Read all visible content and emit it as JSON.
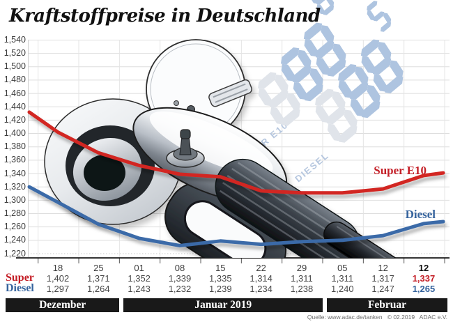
{
  "title": "Kraftstoffpreise in Deutschland",
  "source": "Quelle: www.adac.de/tanken   © 02.2019   ADAC e.V.",
  "colors": {
    "super_line": "#d22620",
    "super_text": "#c41e26",
    "diesel_line": "#3a6aa8",
    "diesel_text": "#35639d",
    "grid": "#dedede",
    "grid_vertical": "#e4e4e4",
    "axis": "#111111",
    "band_bg": "#191919",
    "watermark_lit": "#aec4e0",
    "watermark_ghost": "#e0e4ea",
    "watermark_label": "#b6c7df"
  },
  "watermark": {
    "group1_label": "SUPER E10",
    "group1_digits": "888",
    "group1_small": "8",
    "group2_label": "DIESEL",
    "group2_digits": "888",
    "group2_small": "5"
  },
  "chart_data": {
    "type": "line",
    "categories": [
      "18",
      "25",
      "01",
      "08",
      "15",
      "22",
      "29",
      "05",
      "12",
      "12"
    ],
    "series": [
      {
        "name": "Super",
        "label": "Super E10",
        "color": "#d22620",
        "values": [
          1.402,
          1.371,
          1.352,
          1.339,
          1.335,
          1.314,
          1.311,
          1.311,
          1.317,
          1.337
        ],
        "lead_in": 1.432,
        "lead_out": 1.341
      },
      {
        "name": "Diesel",
        "label": "Diesel",
        "color": "#3a6aa8",
        "values": [
          1.297,
          1.264,
          1.243,
          1.232,
          1.239,
          1.234,
          1.238,
          1.24,
          1.247,
          1.265
        ],
        "lead_in": 1.32,
        "lead_out": 1.268
      }
    ],
    "months": [
      {
        "label": "Dezember",
        "span": 2
      },
      {
        "label": "Januar 2019",
        "span": 5
      },
      {
        "label": "Februar",
        "span": 3
      }
    ],
    "ylim": [
      1.22,
      1.54
    ],
    "ytick_step": 0.02,
    "grid": true,
    "legend_position": "inline-right",
    "last_column_emphasized": true
  }
}
